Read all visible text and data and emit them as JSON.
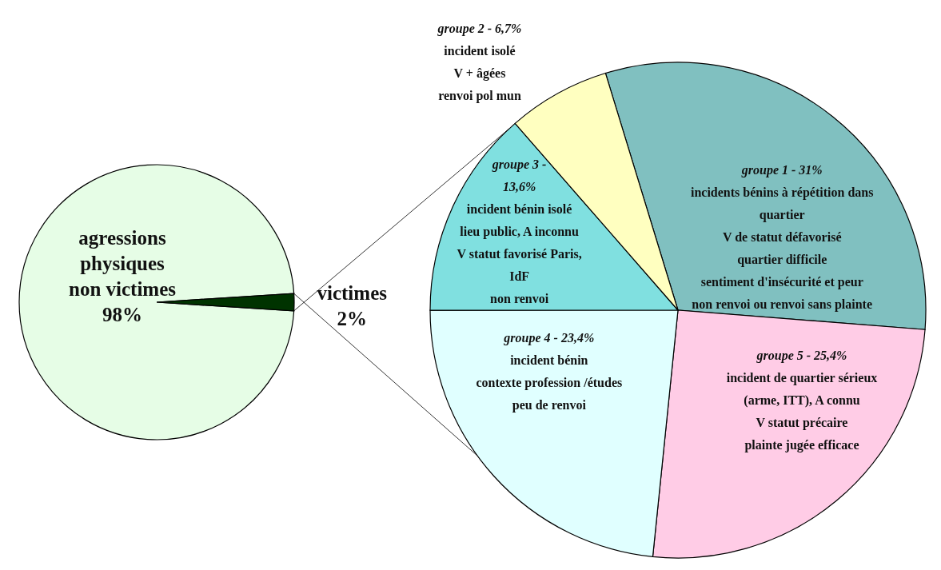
{
  "chart_data": [
    {
      "type": "pie",
      "categories": [
        "agressions\nphysiques\nnon victimes",
        "victimes"
      ],
      "values": [
        98,
        2
      ],
      "colors": [
        "#e6fde6",
        "#003300"
      ],
      "value_labels": [
        "98%",
        "2%"
      ]
    },
    {
      "type": "pie",
      "categories": [
        "groupe 1 -  31%\nincidents bénins à répétition dans\nquartier\nV de statut défavorisé\nquartier difficile\nsentiment d'insécurité et peur\nnon renvoi ou renvoi sans plainte",
        "groupe 5 - 25,4%\nincident de quartier sérieux\n(arme, ITT), A connu\nV statut précaire\nplainte jugée efficace",
        "groupe 4 - 23,4%\nincident bénin\ncontexte profession /études\npeu de renvoi",
        "groupe 3 -\n13,6%\nincident bénin isolé\nlieu public, A inconnu\nV statut favorisé Paris,\nIdF\nnon renvoi",
        "groupe 2 - 6,7%\nincident isolé\nV + âgées\nrenvoi pol mun"
      ],
      "values": [
        31,
        25.4,
        23.4,
        13.6,
        6.7
      ],
      "colors": [
        "#80c0c0",
        "#ffcce6",
        "#e0ffff",
        "#80e0e0",
        "#ffffc0"
      ]
    }
  ]
}
